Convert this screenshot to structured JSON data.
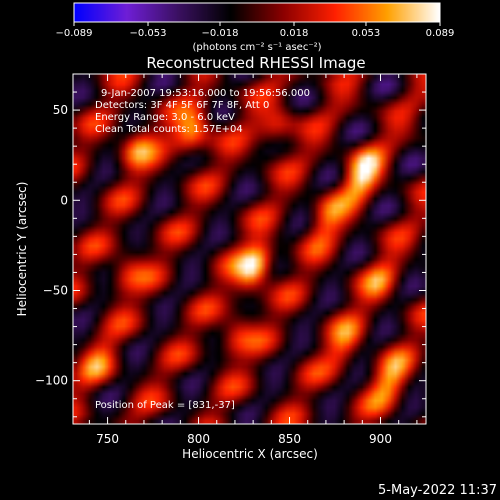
{
  "chart_data": {
    "type": "heatmap",
    "title": "Reconstructed RHESSI Image",
    "xlabel": "Heliocentric X (arcsec)",
    "ylabel": "Heliocentric Y (arcsec)",
    "xlim": [
      731,
      925
    ],
    "ylim": [
      -124,
      70
    ],
    "x_ticks": [
      750,
      800,
      850,
      900
    ],
    "y_ticks": [
      50,
      0,
      -50,
      -100
    ],
    "colorbar": {
      "range": [
        -0.089,
        0.089
      ],
      "tick_values": [
        -0.089,
        -0.053,
        -0.018,
        0.018,
        0.053,
        0.089
      ],
      "tick_labels": [
        "−0.089",
        "−0.053",
        "−0.018",
        "0.018",
        "0.053",
        "0.089"
      ],
      "units_label": "(photons cm⁻² s⁻¹ asec⁻²)",
      "colors": [
        "#0000ff",
        "#6f1ed6",
        "#3a1060",
        "#000000",
        "#8b0000",
        "#ff2000",
        "#ffa000",
        "#ffffff"
      ]
    },
    "peak": {
      "x": 831,
      "y": -37
    },
    "sources": [
      {
        "x": 831,
        "y": -37,
        "value": 0.089
      },
      {
        "x": 797,
        "y": 38,
        "value": 0.07
      },
      {
        "x": 890,
        "y": 15,
        "value": 0.075
      },
      {
        "x": 766,
        "y": 30,
        "value": 0.05
      },
      {
        "x": 870,
        "y": -10,
        "value": 0.045
      },
      {
        "x": 905,
        "y": -100,
        "value": 0.055
      },
      {
        "x": 880,
        "y": -80,
        "value": 0.04
      },
      {
        "x": 820,
        "y": -75,
        "value": 0.045
      },
      {
        "x": 760,
        "y": -40,
        "value": 0.04
      },
      {
        "x": 843,
        "y": 40,
        "value": 0.045
      },
      {
        "x": 745,
        "y": -90,
        "value": 0.035
      },
      {
        "x": 900,
        "y": -45,
        "value": 0.035
      }
    ]
  },
  "annotations": {
    "time_range": "9-Jan-2007 19:53:16.000 to 19:56:56.000",
    "detectors": "Detectors: 3F 4F 5F 6F 7F 8F, Att 0",
    "energy": "Energy Range: 3.0 - 6.0 keV",
    "clean": "Clean     Total counts: 1.57E+04",
    "peak_position": "Position of Peak = [831,-37]"
  },
  "footer_timestamp": "5-May-2022 11:37"
}
